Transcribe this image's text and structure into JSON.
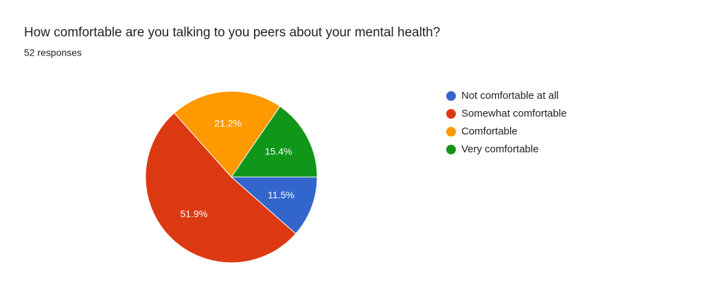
{
  "chart_data": {
    "type": "pie",
    "title": "How comfortable are you talking to you peers about your mental health?",
    "subtitle": "52 responses",
    "categories": [
      "Not comfortable at all",
      "Somewhat comfortable",
      "Comfortable",
      "Very comfortable"
    ],
    "values": [
      11.5,
      51.9,
      21.2,
      15.4
    ],
    "value_labels": [
      "11.5%",
      "51.9%",
      "21.2%",
      "15.4%"
    ],
    "colors": [
      "#3366cc",
      "#dc3912",
      "#ff9900",
      "#109618"
    ],
    "legend": "right"
  }
}
